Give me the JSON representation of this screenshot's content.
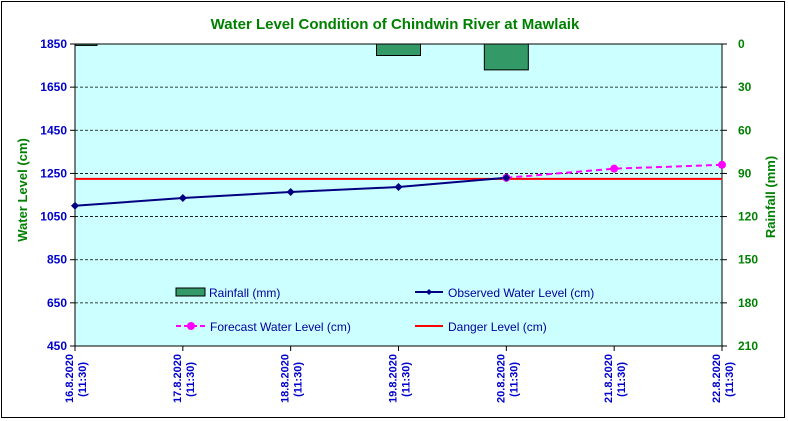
{
  "chart_data": {
    "type": "line",
    "title": "Water Level Condition  of Chindwin River  at  Mawlaik",
    "categories": [
      "16.8.2020\n(11:30)",
      "17.8.2020\n(11:30)",
      "18.8.2020\n(11:30)",
      "19.8.2020\n(11:30)",
      "20.8.2020\n(11:30)",
      "21.8.2020\n(11:30)",
      "22.8.2020\n(11:30)"
    ],
    "x_tick_labels": [
      {
        "date": "16.8.2020",
        "time": "(11:30)"
      },
      {
        "date": "17.8.2020",
        "time": "(11:30)"
      },
      {
        "date": "18.8.2020",
        "time": "(11:30)"
      },
      {
        "date": "19.8.2020",
        "time": "(11:30)"
      },
      {
        "date": "20.8.2020",
        "time": "(11:30)"
      },
      {
        "date": "21.8.2020",
        "time": "(11:30)"
      },
      {
        "date": "22.8.2020",
        "time": "(11:30)"
      }
    ],
    "y_left": {
      "label": "Water Level (cm)",
      "range": [
        450,
        1850
      ],
      "ticks": [
        450,
        650,
        850,
        1050,
        1250,
        1450,
        1650,
        1850
      ]
    },
    "y_right": {
      "label": "Rainfall (mm)",
      "range": [
        0,
        210
      ],
      "inverted": true,
      "ticks": [
        0,
        30,
        60,
        90,
        120,
        150,
        180,
        210
      ]
    },
    "grid": true,
    "series": [
      {
        "name": "Rainfall (mm)",
        "kind": "bar",
        "axis": "right",
        "color": "#339966",
        "values": [
          1,
          null,
          null,
          8,
          18,
          null,
          null
        ]
      },
      {
        "name": "Observed Water Level (cm)",
        "kind": "line",
        "axis": "left",
        "color": "#000080",
        "marker": "diamond",
        "values": [
          1100,
          1136,
          1164,
          1187,
          1230,
          null,
          null
        ]
      },
      {
        "name": "Forecast Water Level (cm)",
        "kind": "line",
        "axis": "left",
        "color": "#ff00ff",
        "marker": "circle",
        "dashed": true,
        "values": [
          null,
          null,
          null,
          null,
          1230,
          1272,
          1290
        ]
      },
      {
        "name": "Danger Level (cm)",
        "kind": "hline",
        "axis": "left",
        "color": "#ff0000",
        "value": 1225
      }
    ],
    "colors": {
      "plot_background": "#ccffff",
      "title": "#008000",
      "left_axis": "#0000cc",
      "right_axis": "#008000",
      "x_axis": "#0000cc",
      "legend_text": "#000099"
    }
  }
}
